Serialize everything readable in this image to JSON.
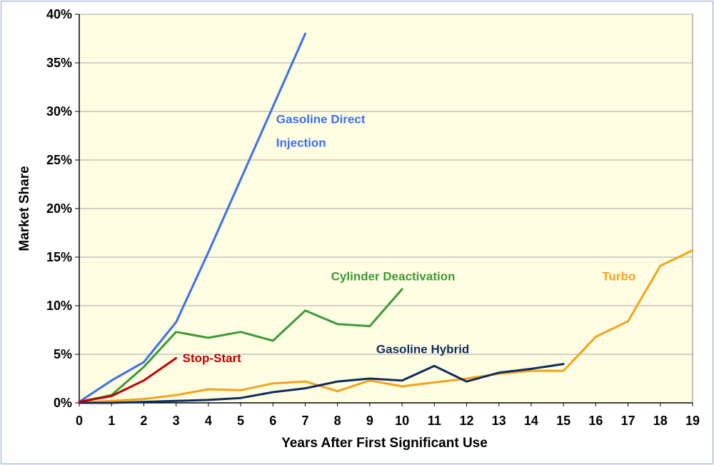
{
  "chart_data": {
    "type": "line",
    "title": "",
    "xlabel": "Years After First Significant Use",
    "ylabel": "Market Share",
    "xlim": [
      0,
      19
    ],
    "ylim": [
      0,
      40
    ],
    "x_ticks": [
      0,
      1,
      2,
      3,
      4,
      5,
      6,
      7,
      8,
      9,
      10,
      11,
      12,
      13,
      14,
      15,
      16,
      17,
      18,
      19
    ],
    "y_ticks": [
      0,
      5,
      10,
      15,
      20,
      25,
      30,
      35,
      40
    ],
    "y_tick_suffix": "%",
    "grid": "horizontal",
    "plot_background": "#fffde2",
    "legend": "inline labels",
    "series": [
      {
        "name": "Gasoline Direct Injection",
        "label_lines": [
          "Gasoline Direct",
          "Injection"
        ],
        "color": "#3b6ff0",
        "x": [
          0,
          1,
          2,
          3,
          4,
          5,
          6,
          7
        ],
        "values": [
          0.1,
          2.3,
          4.2,
          8.3,
          15.5,
          23.0,
          30.5,
          38.0
        ]
      },
      {
        "name": "Cylinder Deactivation",
        "label_lines": [
          "Cylinder Deactivation"
        ],
        "color": "#3c9a38",
        "x": [
          0,
          1,
          2,
          3,
          4,
          5,
          6,
          7,
          8,
          9,
          10
        ],
        "values": [
          0.1,
          0.8,
          3.7,
          7.3,
          6.7,
          7.3,
          6.4,
          9.5,
          8.1,
          7.9,
          11.7
        ]
      },
      {
        "name": "Stop-Start",
        "label_lines": [
          "Stop-Start"
        ],
        "color": "#c00000",
        "x": [
          0,
          1,
          2,
          3
        ],
        "values": [
          0.1,
          0.7,
          2.3,
          4.6
        ]
      },
      {
        "name": "Gasoline Hybrid",
        "label_lines": [
          "Gasoline Hybrid"
        ],
        "color": "#0d2c5e",
        "x": [
          0,
          1,
          2,
          3,
          4,
          5,
          6,
          7,
          8,
          9,
          10,
          11,
          12,
          13,
          14,
          15
        ],
        "values": [
          0.0,
          0.0,
          0.1,
          0.2,
          0.3,
          0.5,
          1.1,
          1.5,
          2.2,
          2.5,
          2.3,
          3.8,
          2.2,
          3.1,
          3.5,
          4.0
        ]
      },
      {
        "name": "Turbo",
        "label_lines": [
          "Turbo"
        ],
        "color": "#f5a31a",
        "x": [
          0,
          1,
          2,
          3,
          4,
          5,
          6,
          7,
          8,
          9,
          10,
          11,
          12,
          13,
          14,
          15,
          16,
          17,
          18,
          19
        ],
        "values": [
          0.0,
          0.2,
          0.4,
          0.8,
          1.4,
          1.3,
          2.0,
          2.2,
          1.2,
          2.3,
          1.7,
          2.1,
          2.5,
          3.0,
          3.3,
          3.3,
          6.8,
          8.4,
          14.1,
          15.7
        ]
      }
    ]
  }
}
